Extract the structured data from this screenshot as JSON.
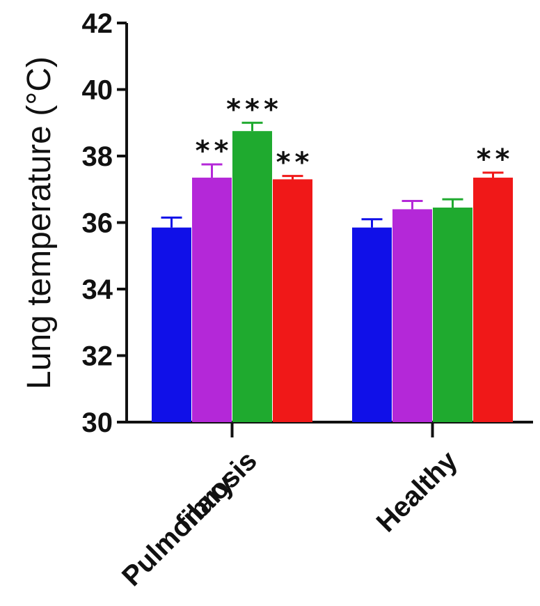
{
  "chart_data": {
    "type": "bar",
    "ylabel": "Lung temperature (°C)",
    "ylim": [
      30,
      42
    ],
    "yticks": [
      30,
      32,
      34,
      36,
      38,
      40,
      42
    ],
    "categories": [
      {
        "lines": [
          "Pulmonary",
          "fibrosis"
        ]
      },
      {
        "lines": [
          "Healthy"
        ]
      }
    ],
    "series": [
      {
        "color": "#1010e8",
        "values": [
          35.85,
          35.85
        ],
        "errors": [
          0.3,
          0.25
        ],
        "significance": [
          "",
          ""
        ]
      },
      {
        "color": "#b428d8",
        "values": [
          37.35,
          36.4
        ],
        "errors": [
          0.4,
          0.25
        ],
        "significance": [
          "**",
          ""
        ]
      },
      {
        "color": "#1faa2f",
        "values": [
          38.75,
          36.45
        ],
        "errors": [
          0.25,
          0.25
        ],
        "significance": [
          "***",
          ""
        ]
      },
      {
        "color": "#f01818",
        "values": [
          37.3,
          37.35
        ],
        "errors": [
          0.1,
          0.15
        ],
        "significance": [
          "**",
          "**"
        ]
      }
    ]
  }
}
